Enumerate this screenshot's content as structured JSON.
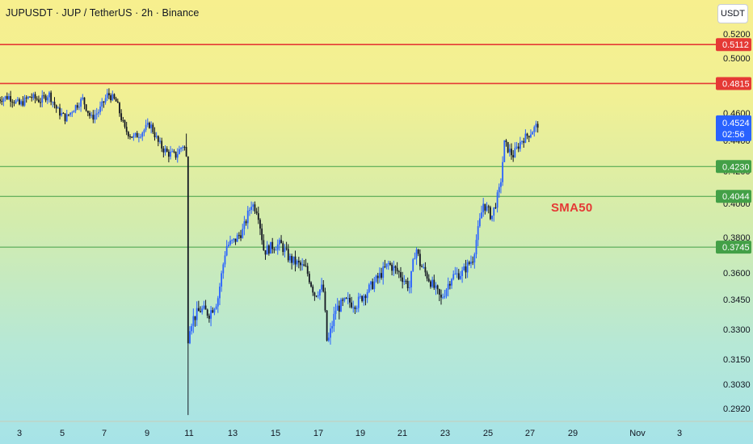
{
  "header": {
    "symbol_title": "JUPUSDT · JUP / TetherUS · 2h · Binance",
    "currency_button": "USDT"
  },
  "annotation": {
    "sma_label": "SMA50"
  },
  "countdown": "02:56",
  "colors": {
    "resistance": "#e53935",
    "support": "#43a047",
    "up_candle": "#2962ff",
    "down_candle": "#131722",
    "last_price": "#2962ff"
  },
  "chart_data": {
    "type": "candlestick",
    "title": "JUPUSDT · JUP / TetherUS · 2h · Binance",
    "y_axis": {
      "ticks": [
        0.52,
        0.5,
        0.46,
        0.44,
        0.42,
        0.4,
        0.38,
        0.36,
        0.345,
        0.33,
        0.315,
        0.303,
        0.292
      ],
      "labels_shown": [
        "0.5200",
        "0.5000",
        "0.4600",
        "0.4400",
        "0.4200",
        "0.4000",
        "0.3800",
        "0.3600",
        "0.3450",
        "0.3300",
        "0.3150",
        "0.3030",
        "0.2920"
      ]
    },
    "x_axis": {
      "ticks": [
        "3",
        "5",
        "7",
        "9",
        "11",
        "13",
        "15",
        "17",
        "19",
        "21",
        "23",
        "25",
        "27",
        "29",
        "Nov",
        "3"
      ]
    },
    "horizontal_levels": [
      {
        "price": 0.5112,
        "label": "0.5112",
        "kind": "resistance"
      },
      {
        "price": 0.4815,
        "label": "0.4815",
        "kind": "resistance"
      },
      {
        "price": 0.423,
        "label": "0.4230",
        "kind": "support"
      },
      {
        "price": 0.4044,
        "label": "0.4044",
        "kind": "support"
      },
      {
        "price": 0.3745,
        "label": "0.3745",
        "kind": "support"
      }
    ],
    "last_price": {
      "value": 0.4524,
      "label": "0.4524"
    },
    "price_path": [
      {
        "day": 2.0,
        "price": 0.47
      },
      {
        "day": 2.5,
        "price": 0.472
      },
      {
        "day": 3.0,
        "price": 0.466
      },
      {
        "day": 3.5,
        "price": 0.472
      },
      {
        "day": 4.0,
        "price": 0.469
      },
      {
        "day": 4.4,
        "price": 0.474
      },
      {
        "day": 4.8,
        "price": 0.462
      },
      {
        "day": 5.2,
        "price": 0.456
      },
      {
        "day": 5.6,
        "price": 0.464
      },
      {
        "day": 6.0,
        "price": 0.47
      },
      {
        "day": 6.4,
        "price": 0.456
      },
      {
        "day": 6.8,
        "price": 0.462
      },
      {
        "day": 7.2,
        "price": 0.474
      },
      {
        "day": 7.6,
        "price": 0.468
      },
      {
        "day": 8.0,
        "price": 0.448
      },
      {
        "day": 8.4,
        "price": 0.442
      },
      {
        "day": 8.8,
        "price": 0.446
      },
      {
        "day": 9.2,
        "price": 0.452
      },
      {
        "day": 9.6,
        "price": 0.438
      },
      {
        "day": 10.0,
        "price": 0.432
      },
      {
        "day": 10.4,
        "price": 0.43
      },
      {
        "day": 10.8,
        "price": 0.438
      },
      {
        "day": 10.95,
        "price": 0.426
      },
      {
        "day": 11.0,
        "price": 0.33
      },
      {
        "day": 11.2,
        "price": 0.335
      },
      {
        "day": 11.6,
        "price": 0.34
      },
      {
        "day": 12.0,
        "price": 0.338
      },
      {
        "day": 12.4,
        "price": 0.345
      },
      {
        "day": 12.8,
        "price": 0.375
      },
      {
        "day": 13.2,
        "price": 0.378
      },
      {
        "day": 13.6,
        "price": 0.384
      },
      {
        "day": 14.0,
        "price": 0.4
      },
      {
        "day": 14.3,
        "price": 0.396
      },
      {
        "day": 14.6,
        "price": 0.372
      },
      {
        "day": 15.0,
        "price": 0.375
      },
      {
        "day": 15.4,
        "price": 0.376
      },
      {
        "day": 15.8,
        "price": 0.368
      },
      {
        "day": 16.2,
        "price": 0.365
      },
      {
        "day": 16.6,
        "price": 0.362
      },
      {
        "day": 17.0,
        "price": 0.348
      },
      {
        "day": 17.4,
        "price": 0.352
      },
      {
        "day": 17.6,
        "price": 0.322
      },
      {
        "day": 18.0,
        "price": 0.34
      },
      {
        "day": 18.5,
        "price": 0.344
      },
      {
        "day": 19.0,
        "price": 0.343
      },
      {
        "day": 19.5,
        "price": 0.35
      },
      {
        "day": 20.0,
        "price": 0.357
      },
      {
        "day": 20.5,
        "price": 0.365
      },
      {
        "day": 21.0,
        "price": 0.36
      },
      {
        "day": 21.5,
        "price": 0.352
      },
      {
        "day": 21.8,
        "price": 0.375
      },
      {
        "day": 22.0,
        "price": 0.365
      },
      {
        "day": 22.5,
        "price": 0.355
      },
      {
        "day": 23.0,
        "price": 0.345
      },
      {
        "day": 23.5,
        "price": 0.358
      },
      {
        "day": 24.0,
        "price": 0.36
      },
      {
        "day": 24.5,
        "price": 0.368
      },
      {
        "day": 25.0,
        "price": 0.4
      },
      {
        "day": 25.4,
        "price": 0.392
      },
      {
        "day": 25.8,
        "price": 0.41
      },
      {
        "day": 26.0,
        "price": 0.438
      },
      {
        "day": 26.4,
        "price": 0.43
      },
      {
        "day": 26.8,
        "price": 0.44
      },
      {
        "day": 27.2,
        "price": 0.445
      },
      {
        "day": 27.6,
        "price": 0.452
      }
    ]
  }
}
